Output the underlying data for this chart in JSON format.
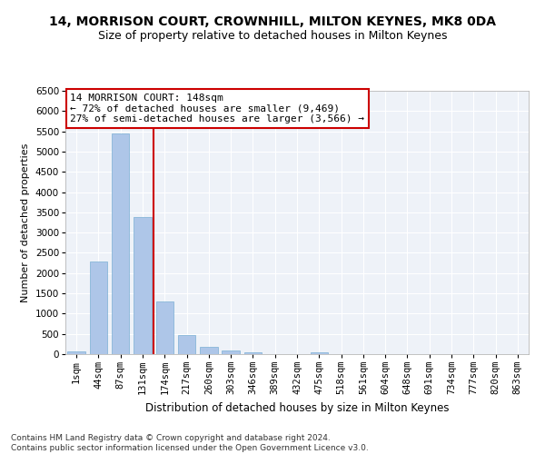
{
  "title1": "14, MORRISON COURT, CROWNHILL, MILTON KEYNES, MK8 0DA",
  "title2": "Size of property relative to detached houses in Milton Keynes",
  "xlabel": "Distribution of detached houses by size in Milton Keynes",
  "ylabel": "Number of detached properties",
  "footnote": "Contains HM Land Registry data © Crown copyright and database right 2024.\nContains public sector information licensed under the Open Government Licence v3.0.",
  "categories": [
    "1sqm",
    "44sqm",
    "87sqm",
    "131sqm",
    "174sqm",
    "217sqm",
    "260sqm",
    "303sqm",
    "346sqm",
    "389sqm",
    "432sqm",
    "475sqm",
    "518sqm",
    "561sqm",
    "604sqm",
    "648sqm",
    "691sqm",
    "734sqm",
    "777sqm",
    "820sqm",
    "863sqm"
  ],
  "values": [
    75,
    2280,
    5450,
    3380,
    1300,
    480,
    185,
    95,
    55,
    0,
    0,
    55,
    0,
    0,
    0,
    0,
    0,
    0,
    0,
    0,
    0
  ],
  "bar_color": "#aec6e8",
  "bar_edge_color": "#7bafd4",
  "vline_color": "#cc0000",
  "vline_pos": 3.5,
  "annotation_text": "14 MORRISON COURT: 148sqm\n← 72% of detached houses are smaller (9,469)\n27% of semi-detached houses are larger (3,566) →",
  "annotation_box_color": "white",
  "annotation_box_edge_color": "#cc0000",
  "ylim": [
    0,
    6500
  ],
  "yticks": [
    0,
    500,
    1000,
    1500,
    2000,
    2500,
    3000,
    3500,
    4000,
    4500,
    5000,
    5500,
    6000,
    6500
  ],
  "background_color": "#eef2f8",
  "grid_color": "white",
  "title1_fontsize": 10,
  "title2_fontsize": 9,
  "xlabel_fontsize": 8.5,
  "ylabel_fontsize": 8,
  "tick_fontsize": 7.5,
  "annotation_fontsize": 8,
  "footnote_fontsize": 6.5
}
